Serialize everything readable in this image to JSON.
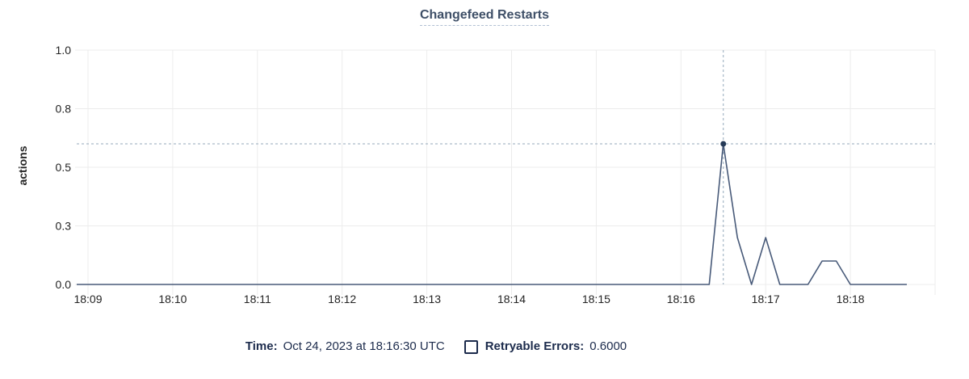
{
  "header": {
    "title": "Changefeed Restarts"
  },
  "y_axis_label": "actions",
  "legend": {
    "time_label": "Time:",
    "time_value": "Oct 24, 2023 at 18:16:30 UTC",
    "series": {
      "label": "Retryable Errors:",
      "value": "0.6000",
      "checked": false
    }
  },
  "chart_data": {
    "type": "line",
    "title": "Changefeed Restarts",
    "xlabel": "",
    "ylabel": "actions",
    "x_domain": [
      "18:08:52",
      "18:19:00"
    ],
    "ylim": [
      0,
      1.0
    ],
    "grid": true,
    "legend_position": "bottom",
    "x_ticks": [
      {
        "t": "18:09:00",
        "label": "18:09"
      },
      {
        "t": "18:10:00",
        "label": "18:10"
      },
      {
        "t": "18:11:00",
        "label": "18:11"
      },
      {
        "t": "18:12:00",
        "label": "18:12"
      },
      {
        "t": "18:13:00",
        "label": "18:13"
      },
      {
        "t": "18:14:00",
        "label": "18:14"
      },
      {
        "t": "18:15:00",
        "label": "18:15"
      },
      {
        "t": "18:16:00",
        "label": "18:16"
      },
      {
        "t": "18:17:00",
        "label": "18:17"
      },
      {
        "t": "18:18:00",
        "label": "18:18"
      },
      {
        "t": "18:19:00",
        "label": ""
      }
    ],
    "y_ticks": [
      {
        "v": 0.0,
        "label": "0.0"
      },
      {
        "v": 0.25,
        "label": "0.3"
      },
      {
        "v": 0.5,
        "label": "0.5"
      },
      {
        "v": 0.75,
        "label": "0.8"
      },
      {
        "v": 1.0,
        "label": "1.0"
      }
    ],
    "series": [
      {
        "name": "Retryable Errors",
        "points": [
          [
            "18:08:52",
            0
          ],
          [
            "18:16:20",
            0
          ],
          [
            "18:16:30",
            0.6
          ],
          [
            "18:16:40",
            0.2
          ],
          [
            "18:16:50",
            0
          ],
          [
            "18:17:00",
            0.2
          ],
          [
            "18:17:10",
            0
          ],
          [
            "18:17:30",
            0
          ],
          [
            "18:17:40",
            0.1
          ],
          [
            "18:17:50",
            0.1
          ],
          [
            "18:18:00",
            0
          ],
          [
            "18:18:40",
            0
          ]
        ]
      }
    ],
    "crosshair": {
      "time": "18:16:30",
      "value": 0.6,
      "value_display": "0.6000",
      "time_display": "Oct 24, 2023 at 18:16:30 UTC"
    }
  },
  "colors": {
    "background": "#ffffff",
    "title": "#3e4f67",
    "title_underline": "#b2c0d3",
    "grid": "#ececec",
    "axis_text": "#242424",
    "line": "#485a79",
    "crosshair": "#94a8bb",
    "point": "#263a57",
    "legend_text": "#1c2b4c"
  }
}
